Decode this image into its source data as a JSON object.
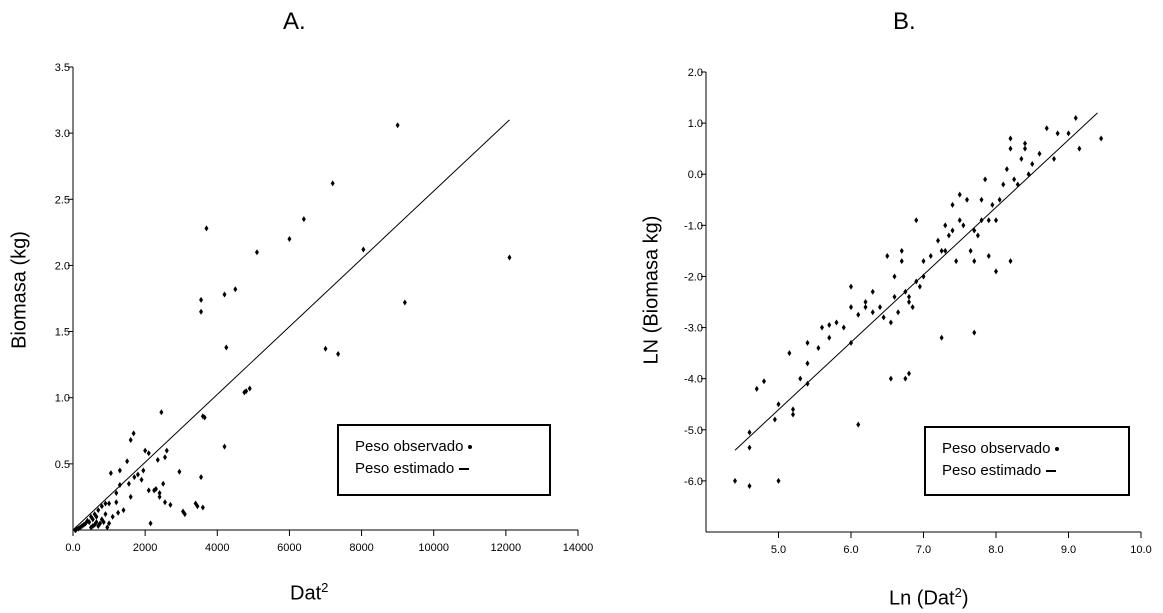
{
  "chart_data": [
    {
      "type": "scatter",
      "panel_label": "A.",
      "xlabel": "Dat",
      "xlabel_sup": "2",
      "ylabel": "Biomasa (kg)",
      "xlim": [
        0,
        14000
      ],
      "ylim": [
        0,
        3.5
      ],
      "xticks": [
        "0.0",
        "2000",
        "4000",
        "6000",
        "8000",
        "10000",
        "12000",
        "14000"
      ],
      "xtick_values": [
        0,
        2000,
        4000,
        6000,
        8000,
        10000,
        12000,
        14000
      ],
      "yticks": [
        "0.5",
        "1.0",
        "1.5",
        "2.0",
        "2.5",
        "3.0",
        "3.5"
      ],
      "ytick_values": [
        0.5,
        1.0,
        1.5,
        2.0,
        2.5,
        3.0,
        3.5
      ],
      "grid": false,
      "legend_position": "bottom-right",
      "legend": [
        {
          "label": "Peso observado",
          "symbol": "dot"
        },
        {
          "label": "Peso estimado",
          "symbol": "line"
        }
      ],
      "series": [
        {
          "type": "scatter",
          "x": [
            9000,
            7200,
            3700,
            6400,
            6000,
            5100,
            8050,
            12100,
            4500,
            4200,
            3550,
            3550,
            7000,
            7350,
            4900,
            9200,
            4250,
            4200,
            3650,
            3600,
            4750,
            4800,
            3450,
            3600,
            3550,
            2450,
            2600,
            1680,
            1600,
            2550,
            2350,
            2500,
            2000,
            2100,
            1500,
            1550,
            1200,
            1300,
            1050,
            1000,
            900,
            1800,
            1950,
            2100,
            2300,
            2400,
            2550,
            2950,
            3050,
            3100,
            2700,
            1600,
            1400,
            1250,
            1100,
            1200,
            900,
            800,
            700,
            650,
            600,
            550,
            500,
            450,
            400,
            350,
            300,
            250,
            200,
            150,
            100,
            80,
            60,
            700,
            750,
            800,
            850,
            950,
            1000,
            500,
            550,
            600,
            650,
            1300,
            1700,
            1900,
            2150,
            2250,
            2400,
            3400
          ],
          "y": [
            3.06,
            2.62,
            2.28,
            2.35,
            2.2,
            2.1,
            2.12,
            2.06,
            1.82,
            1.78,
            1.74,
            1.65,
            1.37,
            1.33,
            1.07,
            1.72,
            1.38,
            0.63,
            0.85,
            0.86,
            1.04,
            1.05,
            0.18,
            0.17,
            0.4,
            0.89,
            0.6,
            0.73,
            0.68,
            0.55,
            0.53,
            0.35,
            0.6,
            0.58,
            0.52,
            0.35,
            0.28,
            0.45,
            0.43,
            0.2,
            0.12,
            0.42,
            0.45,
            0.3,
            0.31,
            0.25,
            0.21,
            0.44,
            0.14,
            0.12,
            0.19,
            0.25,
            0.15,
            0.13,
            0.1,
            0.21,
            0.2,
            0.18,
            0.15,
            0.1,
            0.12,
            0.08,
            0.1,
            0.06,
            0.07,
            0.05,
            0.04,
            0.03,
            0.02,
            0.01,
            0.01,
            0.0,
            0.0,
            0.03,
            0.05,
            0.08,
            0.06,
            0.02,
            0.05,
            0.02,
            0.03,
            0.04,
            0.06,
            0.34,
            0.4,
            0.38,
            0.05,
            0.3,
            0.28,
            0.2
          ]
        },
        {
          "type": "line",
          "x": [
            0,
            12100
          ],
          "y": [
            0.0,
            3.1
          ]
        }
      ]
    },
    {
      "type": "scatter",
      "panel_label": "B.",
      "xlabel": "Ln (Dat",
      "xlabel_sup": "2",
      "xlabel_end": ")",
      "ylabel": "LN (Biomasa kg)",
      "xlim": [
        4.0,
        10.0
      ],
      "ylim": [
        -7.0,
        2.0
      ],
      "xticks": [
        "5.0",
        "6.0",
        "7.0",
        "8.0",
        "9.0",
        "10.0"
      ],
      "xtick_values": [
        5,
        6,
        7,
        8,
        9,
        10
      ],
      "yticks": [
        "2.0",
        "1.0",
        "0.0",
        "-1.0",
        "-2.0",
        "-3.0",
        "-4.0",
        "-5.0",
        "-6.0"
      ],
      "ytick_values": [
        2,
        1,
        0,
        -1,
        -2,
        -3,
        -4,
        -5,
        -6
      ],
      "grid": false,
      "legend_position": "bottom-right",
      "legend": [
        {
          "label": "Peso observado",
          "symbol": "dot"
        },
        {
          "label": "Peso estimado",
          "symbol": "line"
        }
      ],
      "series": [
        {
          "type": "scatter",
          "x": [
            4.4,
            4.6,
            4.6,
            4.7,
            4.8,
            5.0,
            4.95,
            5.15,
            5.2,
            5.2,
            5.3,
            5.4,
            5.4,
            5.55,
            5.6,
            5.7,
            5.7,
            5.8,
            5.9,
            6.0,
            6.0,
            6.1,
            6.0,
            6.2,
            6.2,
            6.3,
            6.3,
            6.4,
            6.45,
            6.5,
            6.55,
            6.6,
            6.6,
            6.65,
            6.7,
            6.7,
            6.75,
            6.8,
            6.8,
            6.85,
            6.9,
            6.9,
            7.0,
            7.0,
            7.1,
            7.2,
            7.25,
            7.3,
            7.3,
            7.35,
            7.4,
            7.4,
            7.45,
            7.5,
            7.5,
            7.55,
            7.6,
            7.65,
            7.7,
            7.7,
            7.75,
            7.8,
            7.8,
            7.85,
            7.9,
            7.9,
            7.95,
            8.0,
            8.0,
            8.05,
            8.1,
            8.15,
            8.2,
            8.2,
            8.25,
            8.3,
            8.35,
            8.4,
            8.45,
            8.5,
            8.6,
            8.7,
            8.8,
            8.85,
            9.0,
            9.1,
            9.15,
            9.45,
            6.1,
            6.55,
            6.75,
            7.25,
            5.4,
            5.0,
            4.6,
            6.8,
            7.7,
            8.2,
            8.4,
            6.95
          ],
          "y": [
            -6.0,
            -5.35,
            -5.05,
            -4.2,
            -4.05,
            -4.5,
            -4.8,
            -3.5,
            -4.6,
            -4.7,
            -4.0,
            -3.7,
            -3.3,
            -3.4,
            -3.0,
            -3.2,
            -2.95,
            -2.9,
            -3.0,
            -3.3,
            -2.6,
            -2.75,
            -2.2,
            -2.5,
            -2.6,
            -2.3,
            -2.7,
            -2.6,
            -2.8,
            -1.6,
            -2.9,
            -2.0,
            -2.4,
            -2.7,
            -1.5,
            -1.7,
            -2.3,
            -2.4,
            -2.5,
            -2.6,
            -0.9,
            -2.1,
            -2.0,
            -1.7,
            -1.6,
            -1.3,
            -1.5,
            -1.0,
            -1.5,
            -1.2,
            -1.1,
            -0.6,
            -1.7,
            -0.4,
            -0.9,
            -1.0,
            -0.5,
            -1.5,
            -1.1,
            -1.7,
            -1.2,
            -0.9,
            -0.5,
            -0.1,
            -1.6,
            -0.9,
            -0.6,
            -0.9,
            -1.9,
            -0.5,
            -0.2,
            0.1,
            0.7,
            0.5,
            -0.1,
            -0.2,
            0.3,
            0.6,
            0.0,
            0.2,
            0.4,
            0.9,
            0.3,
            0.8,
            0.8,
            1.1,
            0.5,
            0.7,
            -4.9,
            -4.0,
            -4.0,
            -3.2,
            -4.1,
            -6.0,
            -6.1,
            -3.9,
            -3.1,
            -1.7,
            0.5,
            -2.2
          ]
        },
        {
          "type": "line",
          "x": [
            4.4,
            9.4
          ],
          "y": [
            -5.4,
            1.2
          ]
        }
      ]
    }
  ]
}
